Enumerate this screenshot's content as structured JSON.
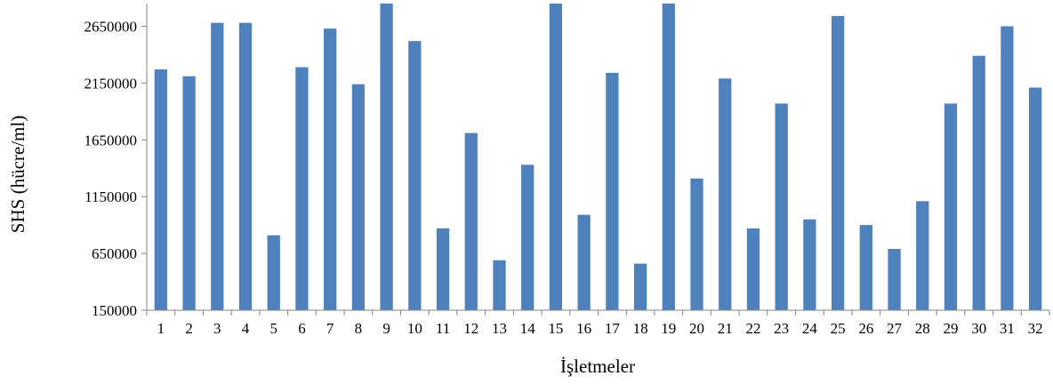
{
  "chart_data": {
    "type": "bar",
    "title": "",
    "xlabel": "İşletmeler",
    "ylabel": "SHS (hücre/ml)",
    "ylim": [
      150000,
      2850000
    ],
    "yticks": [
      "150000",
      "650000",
      "1150000",
      "1650000",
      "2150000",
      "2650000"
    ],
    "grid": false,
    "legend": "none",
    "bar_color": "#4f81bd",
    "categories": [
      "1",
      "2",
      "3",
      "4",
      "5",
      "6",
      "7",
      "8",
      "9",
      "10",
      "11",
      "12",
      "13",
      "14",
      "15",
      "16",
      "17",
      "18",
      "19",
      "20",
      "21",
      "22",
      "23",
      "24",
      "25",
      "26",
      "27",
      "28",
      "29",
      "30",
      "31",
      "32"
    ],
    "series": [
      {
        "values": [
          2270000,
          2210000,
          2680000,
          2680000,
          810000,
          2290000,
          2630000,
          2140000,
          2850000,
          2520000,
          870000,
          1710000,
          590000,
          1430000,
          2850000,
          990000,
          2240000,
          560000,
          2850000,
          1310000,
          2190000,
          870000,
          1970000,
          950000,
          2740000,
          900000,
          690000,
          1110000,
          1970000,
          2390000,
          2650000,
          2110000
        ]
      }
    ]
  }
}
